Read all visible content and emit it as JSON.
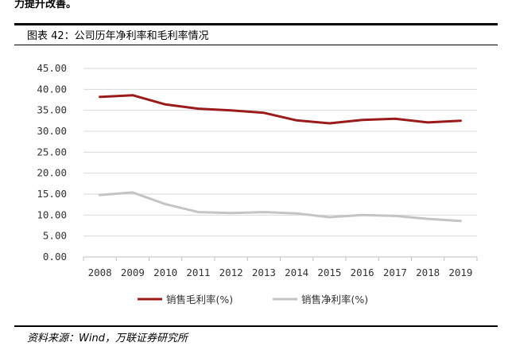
{
  "header_fragment": "力提升改善。",
  "figure_title": "图表 42：公司历年净利率和毛利率情况",
  "source_note": "资料来源：Wind，万联证券研究所",
  "chart_data": {
    "type": "line",
    "x": [
      "2008",
      "2009",
      "2010",
      "2011",
      "2012",
      "2013",
      "2014",
      "2015",
      "2016",
      "2017",
      "2018",
      "2019"
    ],
    "y_ticks": [
      "0.00",
      "5.00",
      "10.00",
      "15.00",
      "20.00",
      "25.00",
      "30.00",
      "35.00",
      "40.00",
      "45.00"
    ],
    "ylim": [
      0,
      45
    ],
    "grid": true,
    "legend_position": "bottom",
    "series": [
      {
        "name": "销售毛利率(%)",
        "color": "#9b1b1b",
        "values": [
          38.2,
          38.6,
          36.4,
          35.4,
          35.0,
          34.4,
          32.6,
          31.9,
          32.7,
          33.0,
          32.1,
          32.5
        ]
      },
      {
        "name": "销售净利率(%)",
        "color": "#c4c4c4",
        "values": [
          14.8,
          15.4,
          12.6,
          10.7,
          10.5,
          10.7,
          10.4,
          9.5,
          10.0,
          9.8,
          9.1,
          8.6
        ]
      }
    ]
  }
}
